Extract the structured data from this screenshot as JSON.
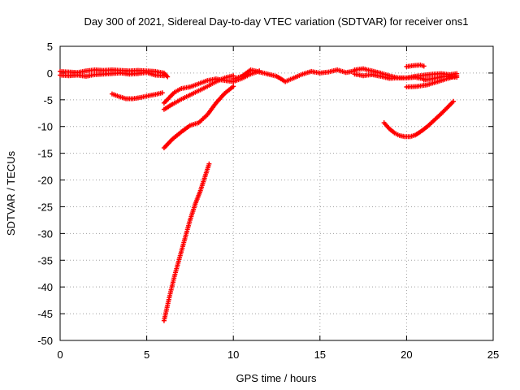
{
  "chart_data": {
    "type": "scatter",
    "title": "Day 300 of 2021, Sidereal Day-to-day VTEC variation (SDTVAR) for receiver ons1",
    "xlabel": "GPS time / hours",
    "ylabel": "SDTVAR / TECUs",
    "xlim": [
      0,
      25
    ],
    "ylim": [
      -50,
      5
    ],
    "xticks": [
      "0",
      "5",
      "10",
      "15",
      "20",
      "25"
    ],
    "yticks": [
      "5",
      "0",
      "-5",
      "-10",
      "-15",
      "-20",
      "-25",
      "-30",
      "-35",
      "-40",
      "-45",
      "-50"
    ],
    "grid": true,
    "marker": "plus",
    "series_color": "#ff0000",
    "series": [
      {
        "x": [
          0.0,
          0.5,
          1.0,
          1.5,
          2.0,
          2.5,
          3.0,
          3.5,
          4.0,
          4.5,
          5.0,
          5.5,
          6.0,
          6.2
        ],
        "y": [
          0.3,
          0.2,
          0.1,
          0.4,
          0.6,
          0.5,
          0.6,
          0.5,
          0.4,
          0.5,
          0.4,
          0.3,
          0.0,
          -0.7
        ]
      },
      {
        "x": [
          0.0,
          0.5,
          1.0,
          1.5,
          2.0,
          2.5,
          3.0,
          3.5,
          4.0,
          4.5,
          5.0,
          5.5,
          6.0
        ],
        "y": [
          -0.4,
          -0.5,
          -0.4,
          -0.6,
          -0.3,
          -0.2,
          -0.1,
          0.0,
          -0.2,
          -0.1,
          0.1,
          -0.4,
          -0.5
        ]
      },
      {
        "x": [
          3.0,
          3.4,
          3.8,
          4.2,
          4.6,
          5.0,
          5.5,
          5.9
        ],
        "y": [
          -3.9,
          -4.4,
          -4.8,
          -4.8,
          -4.6,
          -4.3,
          -4.0,
          -3.7
        ]
      },
      {
        "x": [
          6.0,
          6.3,
          6.6,
          7.0,
          7.5,
          8.0,
          8.5,
          9.0,
          9.5,
          10.0,
          10.5,
          11.0,
          11.5
        ],
        "y": [
          -5.6,
          -4.6,
          -3.6,
          -2.9,
          -2.6,
          -2.0,
          -1.4,
          -1.1,
          -1.4,
          -1.6,
          -1.0,
          -0.2,
          0.4
        ]
      },
      {
        "x": [
          6.0,
          6.5,
          7.0,
          7.5,
          8.0,
          8.5,
          9.0,
          9.5,
          10.0
        ],
        "y": [
          -6.8,
          -5.8,
          -4.9,
          -4.1,
          -3.3,
          -2.5,
          -1.6,
          -0.9,
          -0.5
        ]
      },
      {
        "x": [
          6.0,
          6.5,
          7.0,
          7.5,
          8.0,
          8.5,
          9.0,
          9.5,
          10.0
        ],
        "y": [
          -14.0,
          -12.3,
          -11.0,
          -9.8,
          -9.3,
          -7.8,
          -5.6,
          -3.8,
          -2.5
        ]
      },
      {
        "x": [
          6.0,
          6.3,
          6.6,
          6.9,
          7.2,
          7.5,
          7.8,
          8.1,
          8.4,
          8.6
        ],
        "y": [
          -46.3,
          -42.0,
          -38.0,
          -34.5,
          -31.0,
          -27.5,
          -24.5,
          -22.0,
          -19.0,
          -17.0
        ]
      },
      {
        "x": [
          10.0,
          10.5,
          11.0,
          11.5,
          12.0,
          12.5,
          13.0,
          13.5,
          14.0,
          14.5,
          15.0,
          15.5,
          16.0,
          16.5,
          17.0
        ],
        "y": [
          -1.1,
          -0.6,
          0.6,
          0.2,
          -0.2,
          -0.6,
          -1.6,
          -0.9,
          -0.2,
          0.3,
          0.0,
          0.2,
          0.6,
          0.1,
          0.4
        ]
      },
      {
        "x": [
          17.0,
          17.5,
          18.0,
          18.5,
          19.0,
          19.5,
          20.0,
          20.5,
          21.0,
          21.5,
          22.0,
          22.5,
          22.9
        ],
        "y": [
          -0.2,
          -0.5,
          -0.3,
          -0.6,
          -1.0,
          -0.9,
          -0.9,
          -0.6,
          -0.4,
          -0.2,
          -0.1,
          -0.3,
          -0.1
        ]
      },
      {
        "x": [
          17.0,
          17.5,
          18.0,
          18.5,
          19.0,
          19.5,
          20.0,
          20.5,
          21.0
        ],
        "y": [
          0.6,
          0.8,
          0.4,
          0.0,
          -0.5,
          -0.9,
          -0.9,
          -0.8,
          -1.1
        ]
      },
      {
        "x": [
          20.0,
          20.4,
          20.8,
          21.0
        ],
        "y": [
          1.2,
          1.4,
          1.5,
          1.3
        ]
      },
      {
        "x": [
          20.0,
          20.6,
          21.2,
          21.8,
          22.4,
          22.9
        ],
        "y": [
          -2.6,
          -2.5,
          -2.2,
          -1.6,
          -1.0,
          -0.5
        ]
      },
      {
        "x": [
          21.0,
          21.6,
          22.2,
          22.9
        ],
        "y": [
          -1.3,
          -1.0,
          -0.6,
          -0.8
        ]
      },
      {
        "x": [
          18.7,
          19.0,
          19.3,
          19.6,
          19.9,
          20.2,
          20.5,
          20.8,
          21.2,
          21.6,
          22.0,
          22.4,
          22.7
        ],
        "y": [
          -9.3,
          -10.4,
          -11.2,
          -11.7,
          -11.9,
          -11.9,
          -11.6,
          -11.0,
          -10.0,
          -8.8,
          -7.6,
          -6.3,
          -5.3
        ]
      }
    ]
  }
}
